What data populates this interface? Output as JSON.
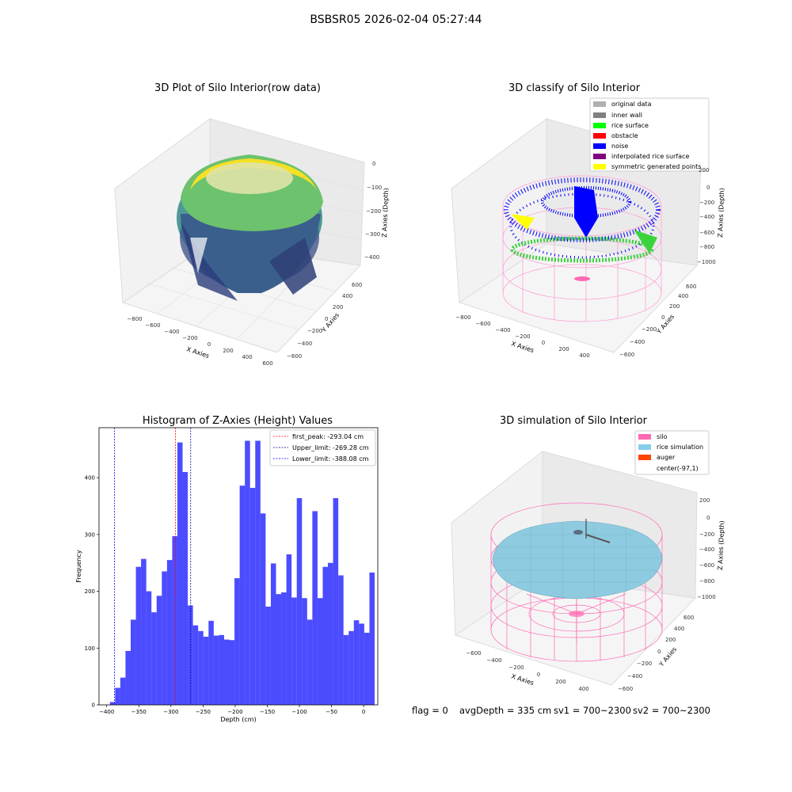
{
  "suptitle": "BSBSR05 2026-02-04 05:27:44",
  "panels": {
    "raw": {
      "title": "3D Plot of Silo Interior(row data)",
      "xlabel": "X Axies",
      "ylabel": "Y Axies",
      "zlabel": "Z Axies (Depth)",
      "xticks": [
        "−800",
        "−600",
        "−400",
        "−200",
        "0",
        "200",
        "400",
        "600"
      ],
      "yticks": [
        "−600",
        "−400",
        "−200",
        "0",
        "200",
        "400",
        "600"
      ],
      "zticks": [
        "0",
        "−100",
        "−200",
        "−300",
        "−400"
      ]
    },
    "classify": {
      "title": "3D classify of Silo Interior",
      "xlabel": "X Axies",
      "ylabel": "Y Axies",
      "zlabel": "Z Axies (Depth)",
      "xticks": [
        "−800",
        "−600",
        "−400",
        "−200",
        "0",
        "200",
        "400"
      ],
      "yticks": [
        "−600",
        "−400",
        "−200",
        "0",
        "200",
        "400",
        "600"
      ],
      "zticks": [
        "200",
        "0",
        "−200",
        "−400",
        "−600",
        "−800",
        "−1000"
      ],
      "legend": [
        {
          "label": "original data",
          "color": "#b0b0b0"
        },
        {
          "label": "inner wall",
          "color": "#808080"
        },
        {
          "label": "rice surface",
          "color": "#00ff00"
        },
        {
          "label": "obstacle",
          "color": "#ff0000"
        },
        {
          "label": "noise",
          "color": "#0000ff"
        },
        {
          "label": "interpolated rice surface",
          "color": "#800080"
        },
        {
          "label": "symmetric generated points",
          "color": "#ffff00"
        }
      ]
    },
    "simulation": {
      "title": "3D simulation of Silo Interior",
      "xlabel": "X Axies",
      "ylabel": "Y Axies",
      "zlabel": "Z Axies (Depth)",
      "xticks": [
        "−600",
        "−400",
        "−200",
        "0",
        "200",
        "400"
      ],
      "yticks": [
        "−600",
        "−400",
        "−200",
        "0",
        "200",
        "400",
        "600"
      ],
      "zticks": [
        "200",
        "0",
        "−200",
        "−400",
        "−600",
        "−800",
        "−1000"
      ],
      "legend": [
        {
          "label": "silo",
          "color": "#ff69b4"
        },
        {
          "label": "rice simulation",
          "color": "#87ceeb"
        },
        {
          "label": "auger",
          "color": "#ff4500"
        },
        {
          "label": "center(-97,1)",
          "color": "#ffffff"
        }
      ]
    }
  },
  "chart_data": {
    "type": "bar",
    "title": "Histogram of Z-Axies (Height) Values",
    "xlabel": "Depth (cm)",
    "ylabel": "Frequency",
    "xlim": [
      -412,
      22
    ],
    "ylim": [
      0,
      488
    ],
    "xticks": [
      -400,
      -350,
      -300,
      -250,
      -200,
      -150,
      -100,
      -50,
      0
    ],
    "yticks": [
      0,
      100,
      200,
      300,
      400
    ],
    "bar_color": "#0000ff",
    "bins": {
      "start": -395,
      "width": 8.08,
      "counts": [
        5,
        30,
        48,
        95,
        150,
        243,
        257,
        200,
        163,
        192,
        235,
        255,
        297,
        462,
        410,
        175,
        140,
        130,
        120,
        148,
        122,
        123,
        115,
        114,
        223,
        386,
        465,
        382,
        465,
        337,
        173,
        249,
        195,
        198,
        265,
        189,
        364,
        188,
        150,
        341,
        188,
        243,
        250,
        364,
        228,
        123,
        130,
        149,
        143,
        127,
        233
      ]
    },
    "vlines": [
      {
        "value": -293.04,
        "color": "#ff0000",
        "label": "first_peak: -293.04 cm"
      },
      {
        "value": -269.28,
        "color": "#00008b",
        "label": "Upper_limit: -269.28 cm"
      },
      {
        "value": -388.08,
        "color": "#0000ff",
        "label": "Lower_limit: -388.08 cm"
      }
    ],
    "legend_position": "top-right"
  },
  "status": {
    "flag": "flag = 0",
    "avg": "avgDepth = 335 cm",
    "sv1": "sv1 = 700~2300",
    "sv2": "sv2 = 700~2300"
  }
}
